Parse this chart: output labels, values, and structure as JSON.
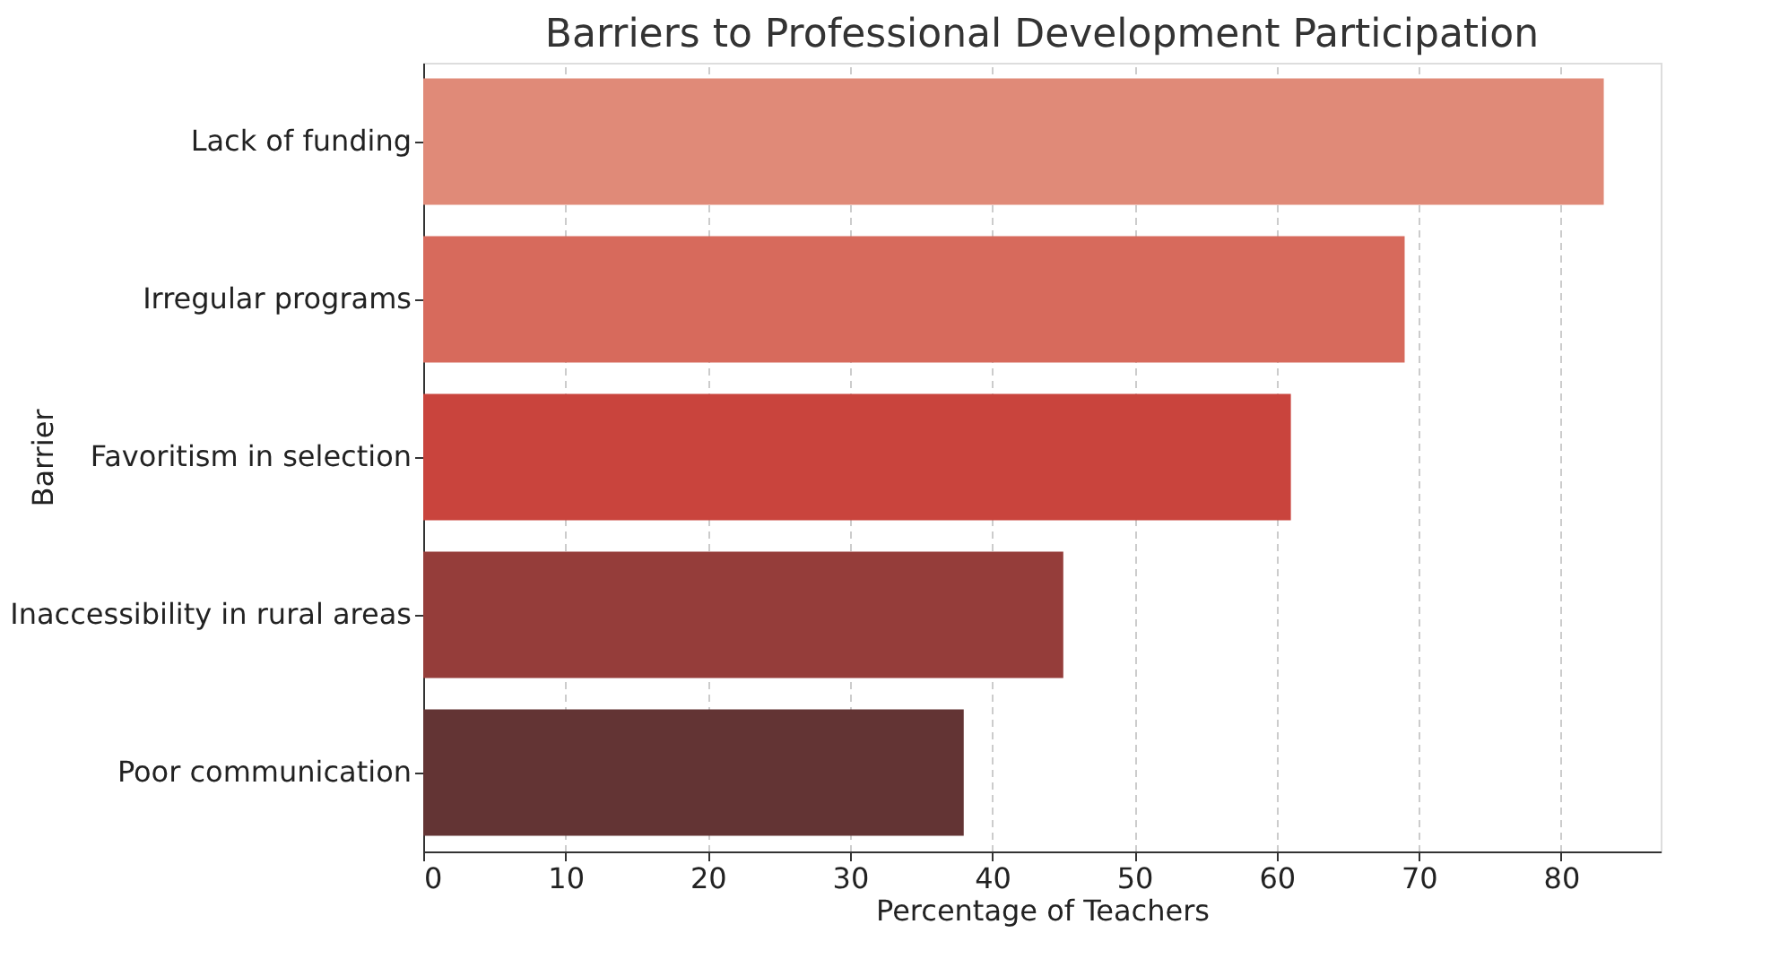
{
  "chart_data": {
    "type": "bar",
    "orientation": "horizontal",
    "title": "Barriers to Professional Development Participation",
    "xlabel": "Percentage of Teachers",
    "ylabel": "Barrier",
    "categories": [
      "Lack of funding",
      "Irregular programs",
      "Favoritism in selection",
      "Inaccessibility in rural areas",
      "Poor communication"
    ],
    "values": [
      83,
      69,
      61,
      45,
      38
    ],
    "colors": [
      "#e08a78",
      "#d76a5c",
      "#c9443d",
      "#953d3a",
      "#633434"
    ],
    "xlim": [
      0,
      87
    ],
    "xticks": [
      0,
      10,
      20,
      30,
      40,
      50,
      60,
      70,
      80
    ],
    "grid": "x"
  }
}
